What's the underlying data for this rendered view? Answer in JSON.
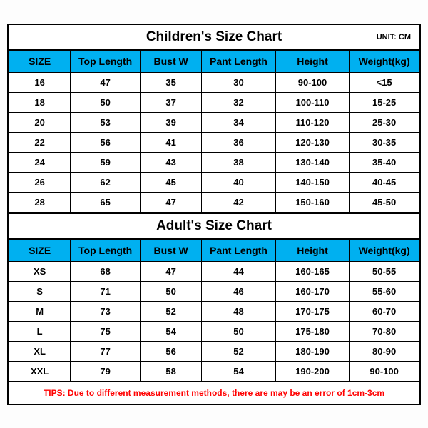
{
  "unit_label": "UNIT: CM",
  "tips": "TIPS: Due to different measurement methods, there are may be an error of 1cm-3cm",
  "headers": [
    "SIZE",
    "Top Length",
    "Bust W",
    "Pant Length",
    "Height",
    "Weight(kg)"
  ],
  "col_widths": [
    "15%",
    "17%",
    "15%",
    "18%",
    "18%",
    "17%"
  ],
  "colors": {
    "header_bg": "#00b0f0",
    "tips_color": "#ff0000",
    "border": "#000000",
    "bg": "#ffffff"
  },
  "font": {
    "title_size": 19,
    "header_size": 14,
    "cell_size": 13,
    "unit_size": 11,
    "tips_size": 12
  },
  "children_chart": {
    "title": "Children's Size Chart",
    "rows": [
      [
        "16",
        "47",
        "35",
        "30",
        "90-100",
        "<15"
      ],
      [
        "18",
        "50",
        "37",
        "32",
        "100-110",
        "15-25"
      ],
      [
        "20",
        "53",
        "39",
        "34",
        "110-120",
        "25-30"
      ],
      [
        "22",
        "56",
        "41",
        "36",
        "120-130",
        "30-35"
      ],
      [
        "24",
        "59",
        "43",
        "38",
        "130-140",
        "35-40"
      ],
      [
        "26",
        "62",
        "45",
        "40",
        "140-150",
        "40-45"
      ],
      [
        "28",
        "65",
        "47",
        "42",
        "150-160",
        "45-50"
      ]
    ]
  },
  "adult_chart": {
    "title": "Adult's Size Chart",
    "rows": [
      [
        "XS",
        "68",
        "47",
        "44",
        "160-165",
        "50-55"
      ],
      [
        "S",
        "71",
        "50",
        "46",
        "160-170",
        "55-60"
      ],
      [
        "M",
        "73",
        "52",
        "48",
        "170-175",
        "60-70"
      ],
      [
        "L",
        "75",
        "54",
        "50",
        "175-180",
        "70-80"
      ],
      [
        "XL",
        "77",
        "56",
        "52",
        "180-190",
        "80-90"
      ],
      [
        "XXL",
        "79",
        "58",
        "54",
        "190-200",
        "90-100"
      ]
    ]
  }
}
